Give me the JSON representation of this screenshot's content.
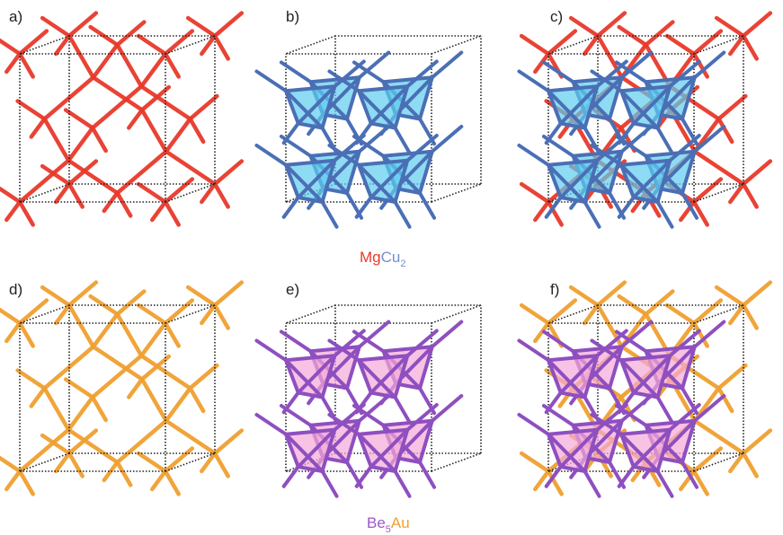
{
  "panels": [
    "a)",
    "b)",
    "c)",
    "d)",
    "e)",
    "f)"
  ],
  "formulas": [
    [
      "Mg",
      "Cu",
      "2"
    ],
    [
      "Be",
      "5",
      "Au"
    ]
  ]
}
